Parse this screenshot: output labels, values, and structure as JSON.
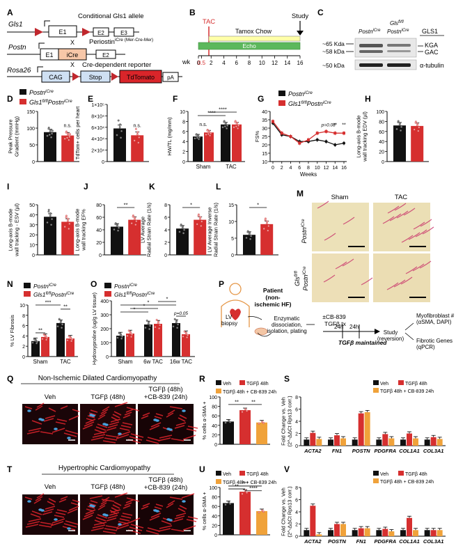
{
  "panels": {
    "A": {
      "letter": "A",
      "rows": [
        {
          "gene": "Gls1",
          "boxes": [
            "E1",
            "E2",
            "E3"
          ],
          "label": "Conditional Gls1 allele"
        },
        {
          "gene": "Postn",
          "boxes": [
            "E1",
            "iCre",
            "E2"
          ],
          "cross": "X",
          "label": "Periostin",
          "label_sup": "iCre (Mer-Cre-Mer)"
        },
        {
          "gene": "Rosa26",
          "boxes": [
            "CAG",
            "Stop",
            "TdTomato",
            "pA"
          ],
          "cross": "X",
          "label": "Cre-dependent reporter"
        }
      ]
    },
    "B": {
      "letter": "B",
      "tac": "TAC",
      "study": "Study",
      "tamox": "Tamox Chow",
      "echo": "Echo",
      "axis_label": "wk",
      "ticks": [
        "0",
        "0.5",
        "2",
        "4",
        "6",
        "8",
        "10",
        "12",
        "14",
        "16"
      ]
    },
    "C": {
      "letter": "C",
      "col1": "Postn",
      "col1_sup": "iCre",
      "col2": "Gls",
      "col2_sup": "fl/fl",
      "col2b": "Postn",
      "col2b_sup": "iCre",
      "header": "GLS1",
      "mw": [
        "~65 Kda",
        "~58 kDa",
        "~50 kDa"
      ],
      "bands": [
        "KGA",
        "GAC",
        "α-tubulin"
      ]
    },
    "D": {
      "letter": "D",
      "legend": [
        {
          "name": "Postn",
          "sup": "iCre",
          "color": "#111111"
        },
        {
          "name": "Gls1",
          "sup": "fl/fl",
          "name2": "Postn",
          "sup2": "iCre",
          "color": "#d62f2f"
        }
      ],
      "ylabel": "Peak Pressure Gradient (mmHg)",
      "yticks": [
        "0",
        "50",
        "100",
        "150"
      ],
      "ns": "n.s."
    },
    "E": {
      "letter": "E",
      "ylabel": "TdTom+ cells per heart",
      "yticks": [
        "0",
        "2×10⁴",
        "4×10⁴",
        "6×10⁴",
        "8×10⁴",
        "1×10⁵"
      ],
      "ns": "n.s."
    },
    "F": {
      "letter": "F",
      "ylabel": "HW/TL (mg/mm)",
      "yticks": [
        "0",
        "2",
        "4",
        "6",
        "8",
        "10"
      ],
      "groups": [
        "Sham",
        "TAC"
      ],
      "ns": "n.s.",
      "sig": "****"
    },
    "G": {
      "letter": "G",
      "ylabel": "FS%",
      "xlabel": "Weeks",
      "yticks": [
        "10",
        "15",
        "20",
        "25",
        "30",
        "35",
        "40"
      ],
      "xticks": [
        "0",
        "2",
        "4",
        "6",
        "8",
        "10",
        "12",
        "14",
        "16"
      ],
      "legend": [
        {
          "name": "Postn",
          "sup": "iCre"
        },
        {
          "name": "Gls1",
          "sup": "fl/fl",
          "name2": "Postn",
          "sup2": "iCre"
        }
      ],
      "p_text": "p=0.08",
      "stars": [
        "**",
        "**"
      ]
    },
    "H": {
      "letter": "H",
      "ylabel": "Long-axis B-mode wall tracking EDV (µl)",
      "yticks": [
        "0",
        "20",
        "40",
        "60",
        "80",
        "100"
      ]
    },
    "I": {
      "letter": "I",
      "ylabel": "Long-axis B-mode wall tracking - ESV (µl)",
      "yticks": [
        "0",
        "10",
        "20",
        "30",
        "40",
        "50"
      ]
    },
    "J": {
      "letter": "J",
      "ylabel": "Long-axis B-mode wall tracking EF%",
      "yticks": [
        "0",
        "20",
        "40",
        "60",
        "80"
      ],
      "sig": "**"
    },
    "K": {
      "letter": "K",
      "ylabel": "LV Average Radial Strain Rate (1/s)",
      "yticks": [
        "0",
        "2",
        "4",
        "6",
        "8"
      ],
      "sig": "*"
    },
    "L": {
      "letter": "L",
      "ylabel": "LV Average Inverse Radial Strain Rate (1/s)",
      "yticks": [
        "0",
        "5",
        "10",
        "15"
      ],
      "sig": "*"
    },
    "M": {
      "letter": "M",
      "cols": [
        "Sham",
        "TAC"
      ],
      "row1": "Postn",
      "row1_sup": "iCre",
      "row2a": "Gls",
      "row2a_sup": "fl/fl",
      "row2b": "Postn",
      "row2b_sup": "iCre"
    },
    "N": {
      "letter": "N",
      "ylabel": "% LV Fibrosis",
      "yticks": [
        "0",
        "2",
        "4",
        "6",
        "8",
        "10"
      ],
      "groups": [
        "Sham",
        "TAC"
      ],
      "legend": [
        {
          "name": "Postn",
          "sup": "iCre"
        },
        {
          "name": "Gls1",
          "sup": "fl/fl",
          "name2": "Postn",
          "sup2": "iCre"
        }
      ],
      "sig": [
        "***",
        "**",
        "**"
      ]
    },
    "O": {
      "letter": "O",
      "ylabel": "Hydroxyproline (ug/g LV tissue)",
      "yticks": [
        "0",
        "100",
        "200",
        "300",
        "400"
      ],
      "groups": [
        "Sham",
        "6w TAC",
        "16w TAC"
      ],
      "legend": [
        {
          "name": "Postn",
          "sup": "iCre"
        },
        {
          "name": "Gls1",
          "sup": "fl/fl",
          "name2": "Postn",
          "sup2": "iCre"
        }
      ],
      "p_text": "p=0.05",
      "star": "*"
    },
    "P": {
      "letter": "P",
      "patient": "Patient (non-ischemic HF)",
      "lv": "LV biopsy",
      "enzymatic": "Enzymatic dissociation, isolation, plating",
      "drug": "±CB-839",
      "t1": "24h",
      "t2": "24h",
      "tgfb": "TGFβ tx",
      "maintained": "TGFβ maintained",
      "study": "Study (reversion)",
      "out1": "Myofibroblast # (αSMA, DAPI)",
      "out2": "Fibrotic Genes (qPCR)"
    },
    "Q": {
      "letter": "Q",
      "title": "Non-Ischemic Dilated Cardiomyopathy",
      "labels": [
        "Veh",
        "TGFβ (48h)",
        "TGFβ (48h) +CB-839 (24h)"
      ]
    },
    "R": {
      "letter": "R",
      "ylabel": "% cells α-SMA +",
      "yticks": [
        "0",
        "20",
        "40",
        "60",
        "80",
        "100"
      ],
      "legend": [
        "Veh",
        "TGFβ 48h",
        "TGFβ 48h + CB-839 24h"
      ],
      "sig": [
        "**",
        "**"
      ]
    },
    "S": {
      "letter": "S",
      "ylabel": "Fold Change vs. Veh (2^-ΔΔCt Rps13 corr.)",
      "yticks": [
        "0",
        "2",
        "4",
        "6",
        "8"
      ],
      "legend": [
        "Veh",
        "TGFβ 48h",
        "TGFβ 48h + CB-839 24h"
      ],
      "genes": [
        "ACTA2",
        "FN1",
        "POSTN",
        "PDGFRA",
        "COL1A1",
        "COL3A1"
      ]
    },
    "T": {
      "letter": "T",
      "title": "Hypertrophic Cardiomyopathy",
      "labels": [
        "Veh",
        "TGFβ (48h)",
        "TGFβ (48h) +CB-839 (24h)"
      ]
    },
    "U": {
      "letter": "U",
      "ylabel": "% cells α-SMA +",
      "yticks": [
        "0",
        "20",
        "40",
        "60",
        "80",
        "100"
      ],
      "legend": [
        "Veh",
        "TGFβ 48h",
        "TGFβ 48h + CB-839 24h"
      ],
      "sig": [
        "**",
        "***",
        "****"
      ]
    },
    "V": {
      "letter": "V",
      "ylabel": "Fold Change vs. Veh (2^-ΔΔCt Rps13 corr.)",
      "yticks": [
        "0",
        "2",
        "4",
        "6",
        "8"
      ],
      "legend": [
        "Veh",
        "TGFβ 48h",
        "TGFβ 48h + CB-839 24h"
      ],
      "genes": [
        "ACTA2",
        "POSTN",
        "FN1",
        "PDGFRA",
        "COL1A1",
        "COL3A1"
      ]
    }
  },
  "colors": {
    "black": "#111111",
    "red": "#d62f2f",
    "orange": "#f0a23a",
    "green": "#5cb85c",
    "pink": "#e8d0a8"
  },
  "chart_data": [
    {
      "panel": "D",
      "type": "bar",
      "categories": [
        "PostniCre",
        "Gls1fl/fl PostniCre"
      ],
      "values": [
        88,
        78
      ],
      "ylim": [
        0,
        150
      ]
    },
    {
      "panel": "E",
      "type": "bar",
      "categories": [
        "PostniCre",
        "Gls1fl/fl PostniCre"
      ],
      "values": [
        58000,
        46000
      ],
      "ylim": [
        0,
        100000
      ]
    },
    {
      "panel": "F",
      "type": "bar",
      "categories": [
        "Sham",
        "TAC"
      ],
      "series": [
        {
          "name": "PostniCre",
          "values": [
            5.0,
            7.4
          ]
        },
        {
          "name": "Gls1fl/fl PostniCre",
          "values": [
            5.8,
            7.4
          ]
        }
      ],
      "ylim": [
        0,
        10
      ]
    },
    {
      "panel": "G",
      "type": "line",
      "x": [
        0,
        2,
        4,
        6,
        8,
        10,
        12,
        14,
        16
      ],
      "series": [
        {
          "name": "PostniCre",
          "values": [
            33,
            26,
            25,
            22,
            22,
            23,
            22,
            20,
            21
          ]
        },
        {
          "name": "Gls1fl/fl PostniCre",
          "values": [
            34,
            27,
            25,
            21,
            23,
            27,
            28,
            27,
            27
          ]
        }
      ],
      "ylim": [
        10,
        40
      ]
    },
    {
      "panel": "H",
      "type": "bar",
      "categories": [
        "PostniCre",
        "Gls1fl/fl PostniCre"
      ],
      "values": [
        72,
        71
      ],
      "ylim": [
        0,
        100
      ]
    },
    {
      "panel": "I",
      "type": "bar",
      "categories": [
        "PostniCre",
        "Gls1fl/fl PostniCre"
      ],
      "values": [
        38,
        33
      ],
      "ylim": [
        0,
        50
      ]
    },
    {
      "panel": "J",
      "type": "bar",
      "categories": [
        "PostniCre",
        "Gls1fl/fl PostniCre"
      ],
      "values": [
        45,
        56
      ],
      "ylim": [
        0,
        80
      ]
    },
    {
      "panel": "K",
      "type": "bar",
      "categories": [
        "PostniCre",
        "Gls1fl/fl PostniCre"
      ],
      "values": [
        4.2,
        5.6
      ],
      "ylim": [
        0,
        8
      ]
    },
    {
      "panel": "L",
      "type": "bar",
      "categories": [
        "PostniCre",
        "Gls1fl/fl PostniCre"
      ],
      "values": [
        6.0,
        9.2
      ],
      "ylim": [
        0,
        15
      ]
    },
    {
      "panel": "N",
      "type": "bar",
      "categories": [
        "Sham",
        "TAC"
      ],
      "series": [
        {
          "name": "PostniCre",
          "values": [
            3.0,
            6.5
          ]
        },
        {
          "name": "Gls1fl/fl PostniCre",
          "values": [
            3.8,
            3.5
          ]
        }
      ],
      "ylim": [
        0,
        10
      ]
    },
    {
      "panel": "O",
      "type": "bar",
      "categories": [
        "Sham",
        "6w TAC",
        "16w TAC"
      ],
      "series": [
        {
          "name": "PostniCre",
          "values": [
            150,
            230,
            240
          ]
        },
        {
          "name": "Gls1fl/fl PostniCre",
          "values": [
            165,
            235,
            160
          ]
        }
      ],
      "ylim": [
        0,
        400
      ]
    },
    {
      "panel": "R",
      "type": "bar",
      "categories": [
        "Veh",
        "TGFβ 48h",
        "TGFβ 48h + CB-839 24h"
      ],
      "values": [
        48,
        72,
        46
      ],
      "ylim": [
        0,
        100
      ]
    },
    {
      "panel": "S",
      "type": "bar",
      "categories": [
        "ACTA2",
        "FN1",
        "POSTN",
        "PDGFRA",
        "COL1A1",
        "COL3A1"
      ],
      "series": [
        {
          "name": "Veh",
          "values": [
            1.0,
            1.0,
            1.0,
            1.0,
            1.0,
            1.0
          ]
        },
        {
          "name": "TGFβ 48h",
          "values": [
            2.1,
            1.7,
            5.3,
            1.9,
            2.0,
            1.4
          ]
        },
        {
          "name": "TGFβ 48h + CB-839 24h",
          "values": [
            1.1,
            1.2,
            5.5,
            1.2,
            1.2,
            1.1
          ]
        }
      ],
      "ylim": [
        0,
        8
      ]
    },
    {
      "panel": "U",
      "type": "bar",
      "categories": [
        "Veh",
        "TGFβ 48h",
        "TGFβ 48h + CB-839 24h"
      ],
      "values": [
        67,
        91,
        50
      ],
      "ylim": [
        0,
        100
      ]
    },
    {
      "panel": "V",
      "type": "bar",
      "categories": [
        "ACTA2",
        "POSTN",
        "FN1",
        "PDGFRA",
        "COL1A1",
        "COL3A1"
      ],
      "series": [
        {
          "name": "Veh",
          "values": [
            1.0,
            1.0,
            1.0,
            1.0,
            1.0,
            1.0
          ]
        },
        {
          "name": "TGFβ 48h",
          "values": [
            5.0,
            2.0,
            1.3,
            1.2,
            3.0,
            1.0
          ]
        },
        {
          "name": "TGFβ 48h + CB-839 24h",
          "values": [
            0.3,
            2.0,
            1.3,
            0.8,
            1.0,
            1.0
          ]
        }
      ],
      "ylim": [
        0,
        8
      ]
    }
  ]
}
